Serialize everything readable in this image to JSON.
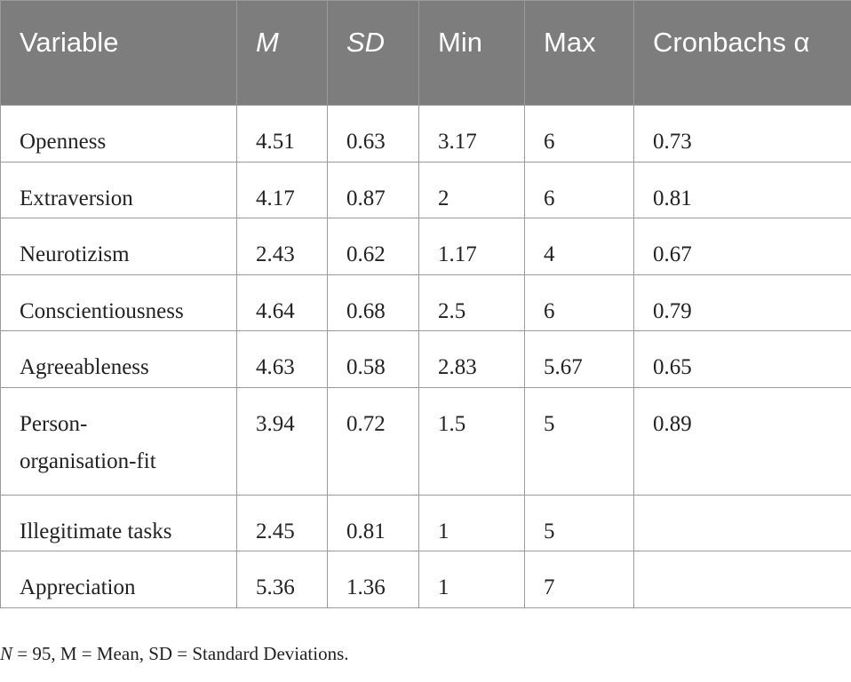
{
  "table": {
    "headers": [
      "Variable",
      "M",
      "SD",
      "Min",
      "Max",
      "Cronbachs α"
    ],
    "rows": [
      [
        "Openness",
        "4.51",
        "0.63",
        "3.17",
        "6",
        "0.73"
      ],
      [
        "Extraversion",
        "4.17",
        "0.87",
        "2",
        "6",
        "0.81"
      ],
      [
        "Neurotizism",
        "2.43",
        "0.62",
        "1.17",
        "4",
        "0.67"
      ],
      [
        "Conscientiousness",
        "4.64",
        "0.68",
        "2.5",
        "6",
        "0.79"
      ],
      [
        "Agreeableness",
        "4.63",
        "0.58",
        "2.83",
        "5.67",
        "0.65"
      ],
      [
        "Person-organisation-fit",
        "3.94",
        "0.72",
        "1.5",
        "5",
        "0.89"
      ],
      [
        "Illegitimate tasks",
        "2.45",
        "0.81",
        "1",
        "5",
        ""
      ],
      [
        "Appreciation",
        "5.36",
        "1.36",
        "1",
        "7",
        ""
      ]
    ]
  },
  "note": {
    "n_label": "N",
    "rest": " = 95, M = Mean, SD = Standard Deviations."
  }
}
